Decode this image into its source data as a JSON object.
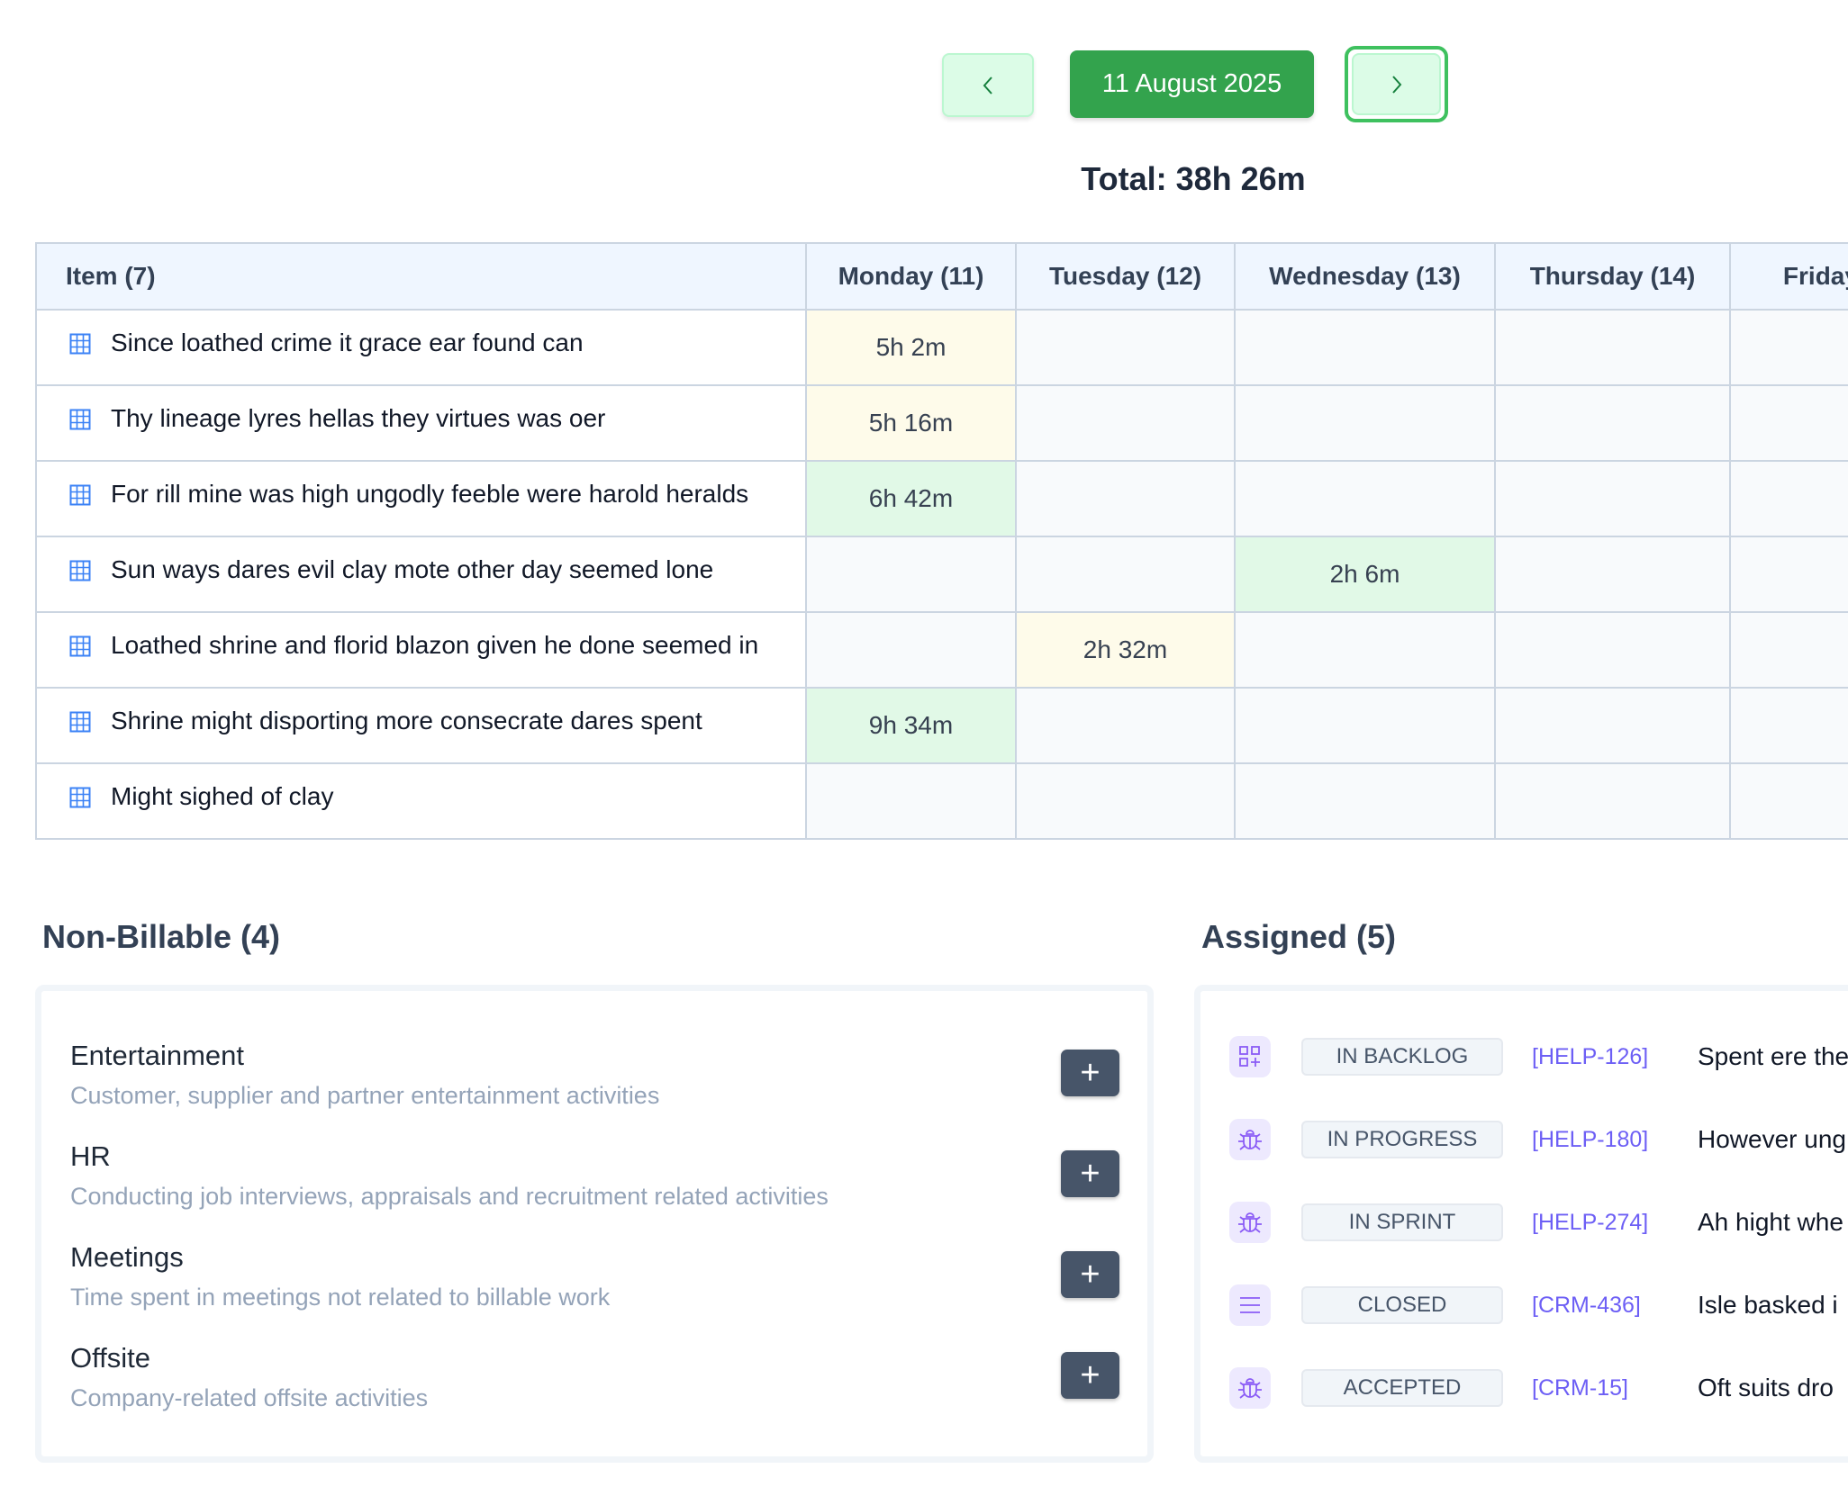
{
  "nav": {
    "prev_icon": "chevron-left-icon",
    "date": "11 August 2025",
    "next_icon": "chevron-right-icon",
    "total": "Total: 38h 26m"
  },
  "table": {
    "headers": [
      "Item (7)",
      "Monday (11)",
      "Tuesday (12)",
      "Wednesday (13)",
      "Thursday (14)",
      "Friday ("
    ],
    "rows": [
      {
        "item": "Since loathed crime it grace ear found can",
        "cells": [
          "5h 2m",
          "",
          "",
          "",
          ""
        ]
      },
      {
        "item": "Thy lineage lyres hellas they virtues was oer",
        "cells": [
          "5h 16m",
          "",
          "",
          "",
          ""
        ]
      },
      {
        "item": "For rill mine was high ungodly feeble were harold heralds",
        "cells": [
          "6h 42m",
          "",
          "",
          "",
          ""
        ]
      },
      {
        "item": "Sun ways dares evil clay mote other day seemed lone",
        "cells": [
          "",
          "",
          "2h 6m",
          "",
          ""
        ]
      },
      {
        "item": "Loathed shrine and florid blazon given he done seemed in",
        "cells": [
          "",
          "2h 32m",
          "",
          "",
          ""
        ]
      },
      {
        "item": "Shrine might disporting more consecrate dares spent",
        "cells": [
          "9h 34m",
          "",
          "",
          "",
          ""
        ]
      },
      {
        "item": "Might sighed of clay",
        "cells": [
          "",
          "",
          "",
          "",
          ""
        ]
      }
    ]
  },
  "nonbillable": {
    "title": "Non-Billable (4)",
    "items": [
      {
        "name": "Entertainment",
        "desc": "Customer, supplier and partner entertainment activities",
        "button": "+"
      },
      {
        "name": "HR",
        "desc": "Conducting job interviews, appraisals and recruitment related activities",
        "button": "+"
      },
      {
        "name": "Meetings",
        "desc": "Time spent in meetings not related to billable work",
        "button": "+"
      },
      {
        "name": "Offsite",
        "desc": "Company-related offsite activities",
        "button": "+"
      }
    ]
  },
  "assigned": {
    "title": "Assigned (5)",
    "items": [
      {
        "icon": "backlog-icon",
        "status": "IN BACKLOG",
        "id": "[HELP-126]",
        "title": "Spent ere the"
      },
      {
        "icon": "bug-icon",
        "status": "IN PROGRESS",
        "id": "[HELP-180]",
        "title": "However ung"
      },
      {
        "icon": "bug-icon",
        "status": "IN SPRINT",
        "id": "[HELP-274]",
        "title": "Ah hight whe"
      },
      {
        "icon": "list-icon",
        "status": "CLOSED",
        "id": "[CRM-436]",
        "title": "Isle basked i"
      },
      {
        "icon": "bug-icon",
        "status": "ACCEPTED",
        "id": "[CRM-15]",
        "title": "Oft suits dro"
      }
    ]
  }
}
